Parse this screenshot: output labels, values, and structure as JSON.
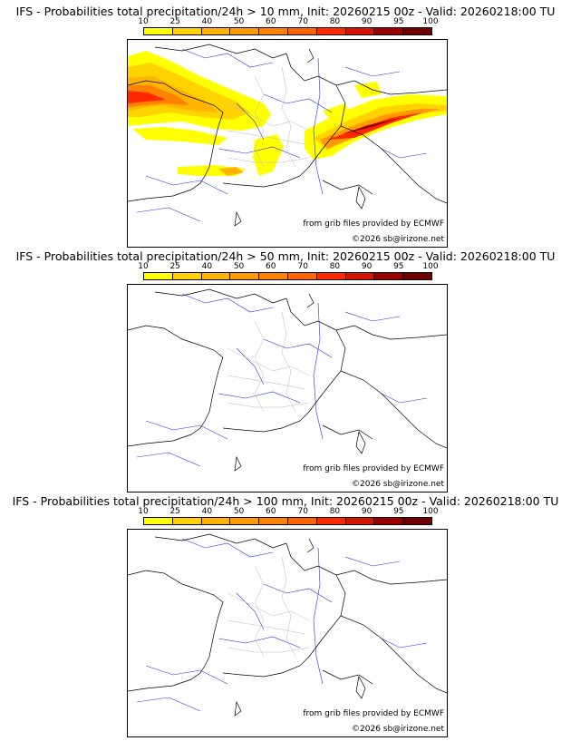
{
  "colorbar": {
    "ticks": [
      "10",
      "25",
      "40",
      "50",
      "60",
      "70",
      "80",
      "90",
      "95",
      "100"
    ],
    "colors": [
      "#ffff00",
      "#ffd200",
      "#ffb400",
      "#ff9b00",
      "#ff8200",
      "#ff6400",
      "#ff2800",
      "#d21400",
      "#9b0000",
      "#6e0000"
    ]
  },
  "panels": [
    {
      "title": "IFS - Probabilities total precipitation/24h > 10 mm, Init: 20260215 00z - Valid: 20260218:00 TU",
      "credit_grib": "from grib files provided by ECMWF",
      "credit_site": "©2026 sb@irizone.net"
    },
    {
      "title": "IFS - Probabilities total precipitation/24h > 50 mm, Init: 20260215 00z - Valid: 20260218:00 TU",
      "credit_grib": "from grib files provided by ECMWF",
      "credit_site": "©2026 sb@irizone.net"
    },
    {
      "title": "IFS - Probabilities total precipitation/24h > 100 mm, Init: 20260215 00z - Valid: 20260218:00 TU",
      "credit_grib": "from grib files provided by ECMWF",
      "credit_site": "©2026 sb@irizone.net"
    }
  ]
}
